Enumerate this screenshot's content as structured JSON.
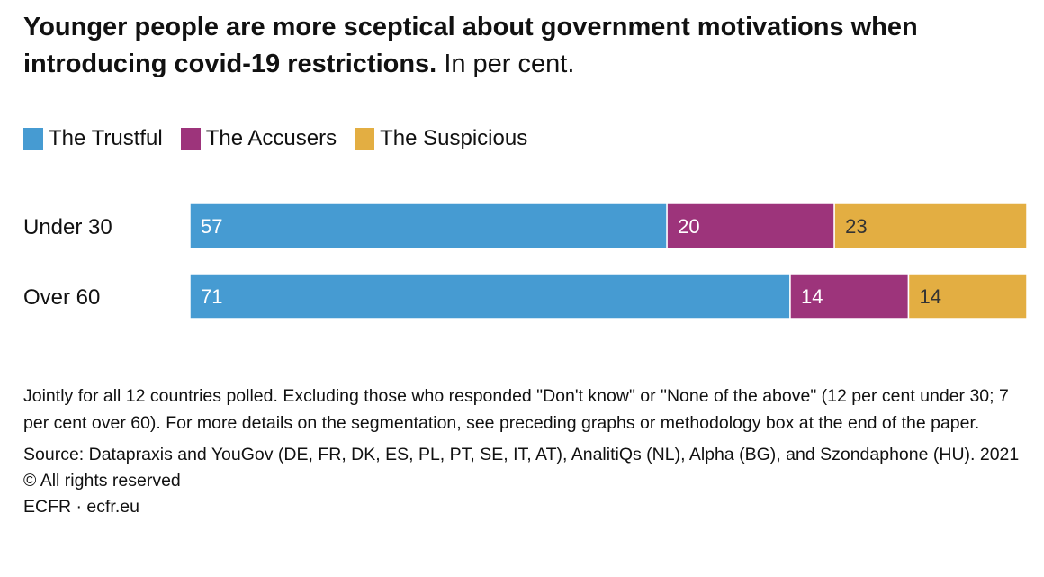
{
  "chart_data": {
    "type": "bar",
    "orientation": "horizontal-stacked-100",
    "title": "Younger people are more sceptical about government motivations when introducing covid-19 restrictions.",
    "subtitle": "In per cent.",
    "categories": [
      "Under 30",
      "Over 60"
    ],
    "series": [
      {
        "name": "The Trustful",
        "values": [
          57,
          71
        ],
        "color": "#469bd2",
        "label_color": "#ffffff"
      },
      {
        "name": "The Accusers",
        "values": [
          20,
          14
        ],
        "color": "#9d347b",
        "label_color": "#ffffff"
      },
      {
        "name": "The Suspicious",
        "values": [
          23,
          14
        ],
        "color": "#e3ae42",
        "label_color": "#333333"
      }
    ],
    "legend_position": "top-left",
    "grid": false
  },
  "notes": {
    "note": "Jointly for all 12 countries polled. Excluding those who responded \"Don't know\" or \"None of the above\" (12 per cent under 30; 7 per cent over 60). For more details on the segmentation, see preceding graphs or methodology box at the end of the paper.",
    "source": "Source: Datapraxis and YouGov (DE, FR, DK, ES, PL, PT, SE, IT, AT), AnalitiQs (NL), Alpha (BG), and Szondaphone (HU). 2021 © All rights reserved",
    "credit": "ECFR · ecfr.eu"
  }
}
